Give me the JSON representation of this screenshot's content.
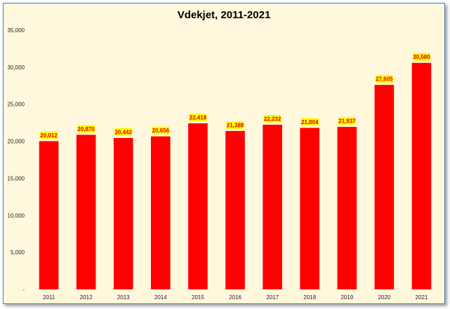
{
  "chart_data": {
    "type": "bar",
    "title": "Vdekjet, 2011-2021",
    "xlabel": "",
    "ylabel": "",
    "categories": [
      "2011",
      "2012",
      "2013",
      "2014",
      "2015",
      "2016",
      "2017",
      "2018",
      "2019",
      "2020",
      "2021"
    ],
    "values": [
      20012,
      20870,
      20442,
      20656,
      22418,
      21388,
      22232,
      21804,
      21937,
      27605,
      30580
    ],
    "data_labels": [
      "20,012",
      "20,870",
      "20,442",
      "20,656",
      "22,418",
      "21,388",
      "22,232",
      "21,804",
      "21,937",
      "27,605",
      "30,580"
    ],
    "ylim": [
      0,
      35000
    ],
    "yticks": [
      0,
      5000,
      10000,
      15000,
      20000,
      25000,
      30000,
      35000
    ],
    "ytick_labels": [
      "-",
      "5,000",
      "10,000",
      "15,000",
      "20,000",
      "25,000",
      "30,000",
      "35,000"
    ],
    "grid": false,
    "legend": "none",
    "colors": {
      "bar": "#ff0000",
      "label_background": "#ffff00",
      "label_text": "#e00000",
      "plot_background": "#fff8dc",
      "border": "#4a78c2"
    }
  }
}
